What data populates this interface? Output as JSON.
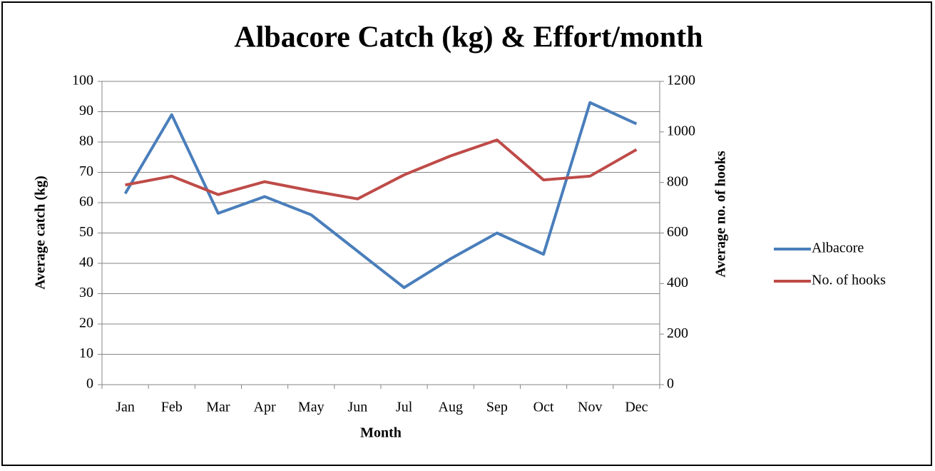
{
  "chart_data": {
    "type": "line",
    "title": "Albacore Catch (kg) & Effort/month",
    "x_label": "Month",
    "y_label": "Average catch (kg)",
    "y2_label": "Average no. of hooks",
    "categories": [
      "Jan",
      "Feb",
      "Mar",
      "Apr",
      "May",
      "Jun",
      "Jul",
      "Aug",
      "Sep",
      "Oct",
      "Nov",
      "Dec"
    ],
    "series": [
      {
        "name": "Albacore",
        "color": "#4a7ebb",
        "values": [
          63,
          89,
          56.5,
          62,
          56,
          44,
          32,
          41.5,
          50,
          43,
          93,
          86
        ]
      },
      {
        "name": "No. of hooks",
        "color": "#be4b48",
        "axis": "y2",
        "values": [
          790,
          825,
          752,
          803,
          767,
          735,
          830,
          905,
          968,
          810,
          825,
          930
        ]
      }
    ],
    "ylim": [
      0,
      100
    ],
    "yticks": [
      0,
      10,
      20,
      30,
      40,
      50,
      60,
      70,
      80,
      90,
      100
    ],
    "y2lim": [
      0,
      1200
    ],
    "y2ticks": [
      0,
      200,
      400,
      600,
      800,
      1000,
      1200
    ],
    "grid": true,
    "legend": "right"
  }
}
